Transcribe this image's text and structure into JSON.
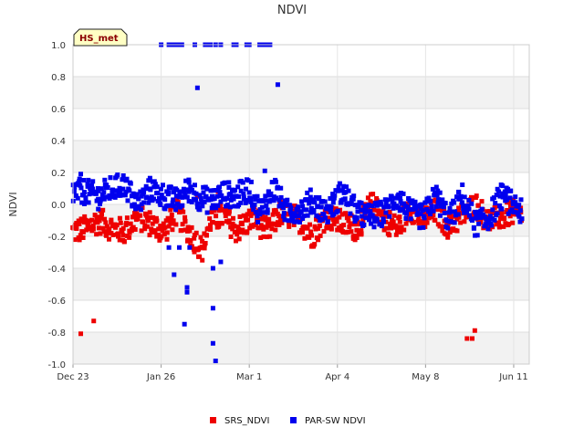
{
  "chart_data": {
    "type": "scatter",
    "title": "NDVI",
    "xlabel": "",
    "ylabel": "NDVI",
    "badge": "HS_met",
    "ylim": [
      -1.0,
      1.0
    ],
    "yticks": [
      1.0,
      0.8,
      0.6,
      0.4,
      0.2,
      0.0,
      -0.2,
      -0.4,
      -0.6,
      -0.8,
      -1.0
    ],
    "ytick_labels": [
      "1.0",
      "0.8",
      "0.6",
      "0.4",
      "0.2",
      "0.0",
      "-0.2",
      "-0.4",
      "-0.6",
      "-0.8",
      "-1.0"
    ],
    "xlim_days": [
      0,
      176
    ],
    "xticks_days": [
      0,
      34,
      68,
      102,
      136,
      170
    ],
    "xtick_labels": [
      "Dec 23",
      "Jan 26",
      "Mar 1",
      "Apr 4",
      "May 8",
      "Jun 11"
    ],
    "grid": true,
    "legend_position": "bottom-center",
    "series": [
      {
        "name": "SRS_NDVI",
        "color": "#ee0000",
        "center": [
          [
            0,
            -0.17
          ],
          [
            5,
            -0.15
          ],
          [
            10,
            -0.1
          ],
          [
            15,
            -0.15
          ],
          [
            20,
            -0.17
          ],
          [
            25,
            -0.08
          ],
          [
            30,
            -0.12
          ],
          [
            35,
            -0.17
          ],
          [
            40,
            -0.05
          ],
          [
            45,
            -0.18
          ],
          [
            50,
            -0.28
          ],
          [
            53,
            -0.1
          ],
          [
            58,
            -0.07
          ],
          [
            63,
            -0.16
          ],
          [
            70,
            -0.08
          ],
          [
            75,
            -0.18
          ],
          [
            80,
            -0.05
          ],
          [
            88,
            -0.1
          ],
          [
            92,
            -0.2
          ],
          [
            98,
            -0.07
          ],
          [
            104,
            -0.12
          ],
          [
            110,
            -0.15
          ],
          [
            115,
            0.0
          ],
          [
            120,
            -0.09
          ],
          [
            125,
            -0.15
          ],
          [
            130,
            -0.02
          ],
          [
            135,
            -0.1
          ],
          [
            140,
            -0.04
          ],
          [
            145,
            -0.14
          ],
          [
            150,
            -0.07
          ],
          [
            155,
            0.0
          ],
          [
            160,
            -0.1
          ],
          [
            165,
            -0.08
          ],
          [
            170,
            -0.05
          ],
          [
            173,
            -0.08
          ]
        ],
        "outliers": [
          [
            3,
            -0.81
          ],
          [
            8,
            -0.73
          ],
          [
            152,
            -0.84
          ],
          [
            154,
            -0.84
          ],
          [
            155,
            -0.79
          ],
          [
            44,
            0.09
          ],
          [
            48,
            0.05
          ],
          [
            56,
            0.08
          ]
        ]
      },
      {
        "name": "PAR-SW NDVI",
        "color": "#0000ee",
        "center": [
          [
            0,
            0.08
          ],
          [
            5,
            0.08
          ],
          [
            10,
            0.05
          ],
          [
            15,
            0.1
          ],
          [
            20,
            0.12
          ],
          [
            25,
            0.0
          ],
          [
            30,
            0.1
          ],
          [
            35,
            0.05
          ],
          [
            40,
            0.02
          ],
          [
            45,
            0.1
          ],
          [
            48,
            0.05
          ],
          [
            53,
            0.02
          ],
          [
            58,
            0.07
          ],
          [
            63,
            0.05
          ],
          [
            68,
            0.1
          ],
          [
            72,
            -0.05
          ],
          [
            78,
            0.1
          ],
          [
            82,
            -0.05
          ],
          [
            88,
            -0.03
          ],
          [
            92,
            0.02
          ],
          [
            98,
            -0.05
          ],
          [
            104,
            0.08
          ],
          [
            110,
            -0.06
          ],
          [
            115,
            -0.08
          ],
          [
            120,
            -0.05
          ],
          [
            125,
            0.05
          ],
          [
            130,
            -0.05
          ],
          [
            135,
            -0.08
          ],
          [
            140,
            0.05
          ],
          [
            145,
            -0.1
          ],
          [
            150,
            0.05
          ],
          [
            155,
            -0.12
          ],
          [
            160,
            -0.1
          ],
          [
            165,
            0.05
          ],
          [
            170,
            0.0
          ],
          [
            173,
            -0.05
          ]
        ],
        "outliers": [
          [
            34,
            1.0
          ],
          [
            37,
            1.0
          ],
          [
            38,
            1.0
          ],
          [
            39,
            1.0
          ],
          [
            40,
            1.0
          ],
          [
            41,
            1.0
          ],
          [
            42,
            1.0
          ],
          [
            47,
            1.0
          ],
          [
            51,
            1.0
          ],
          [
            52,
            1.0
          ],
          [
            53,
            1.0
          ],
          [
            55,
            1.0
          ],
          [
            57,
            1.0
          ],
          [
            62,
            1.0
          ],
          [
            63,
            1.0
          ],
          [
            67,
            1.0
          ],
          [
            68,
            1.0
          ],
          [
            72,
            1.0
          ],
          [
            73,
            1.0
          ],
          [
            74,
            1.0
          ],
          [
            75,
            1.0
          ],
          [
            76,
            1.0
          ],
          [
            79,
            0.75
          ],
          [
            48,
            0.73
          ],
          [
            39,
            -0.44
          ],
          [
            44,
            -0.52
          ],
          [
            44,
            -0.55
          ],
          [
            43,
            -0.75
          ],
          [
            54,
            -0.65
          ],
          [
            54,
            -0.87
          ],
          [
            55,
            -0.98
          ],
          [
            54,
            -0.4
          ],
          [
            57,
            -0.36
          ],
          [
            41,
            -0.27
          ],
          [
            45,
            -0.27
          ],
          [
            37,
            -0.27
          ],
          [
            3,
            0.19
          ],
          [
            74,
            0.21
          ]
        ]
      }
    ]
  }
}
